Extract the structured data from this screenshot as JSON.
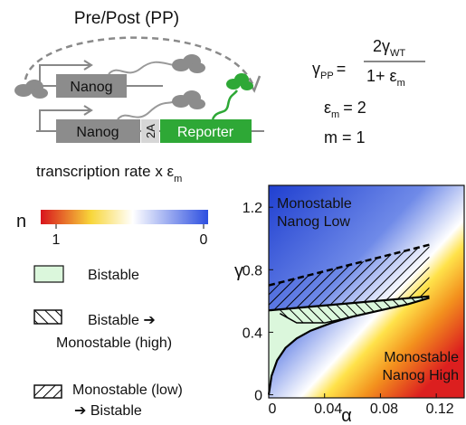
{
  "diagram": {
    "title": "Pre/Post (PP)",
    "gene1": "Nanog",
    "gene2": "Nanog",
    "linker": "2A",
    "reporter": "Reporter",
    "caption": "transcription rate x ε",
    "caption_sub": "m"
  },
  "equation": {
    "lhs": "γ",
    "lhs_sub": "PP",
    "equals": "=",
    "numerator": "2γ",
    "numerator_sub": "WT",
    "denominator": "1+ ε",
    "denominator_sub": "m",
    "param1": "ε",
    "param1_sub": "m",
    "param1_value": "= 2",
    "param2": "m = 1"
  },
  "legend": {
    "colorbar_title": "n",
    "colorbar_ticks": [
      1,
      0
    ],
    "bistable": "Bistable",
    "to_high": [
      "Bistable ➔",
      "Monostable (high)"
    ],
    "from_low": [
      "Monostable (low)",
      "➔ Bistable"
    ]
  },
  "chart_data": {
    "type": "phase",
    "xlabel": "α",
    "ylabel": "γ",
    "xlim": [
      0,
      0.14
    ],
    "ylim": [
      -0.02,
      1.34
    ],
    "xticks": [
      0,
      0.04,
      0.08,
      0.12
    ],
    "yticks": [
      0,
      0.4,
      0.8,
      1.2
    ],
    "annotations": [
      [
        "Monostable",
        "Nanog Low"
      ],
      [
        "Monostable",
        "Nanog High"
      ]
    ],
    "boundaries": {
      "lower": {
        "x": [
          0,
          0.002,
          0.006,
          0.012,
          0.02,
          0.03,
          0.045,
          0.06,
          0.08,
          0.1,
          0.115
        ],
        "y": [
          0,
          0.12,
          0.22,
          0.3,
          0.36,
          0.41,
          0.46,
          0.5,
          0.54,
          0.58,
          0.62
        ]
      },
      "mid": {
        "x": [
          0.008,
          0.02,
          0.04,
          0.06,
          0.08,
          0.1,
          0.115
        ],
        "y": [
          0.52,
          0.46,
          0.46,
          0.5,
          0.54,
          0.58,
          0.62
        ]
      },
      "upper_solid": {
        "x": [
          0,
          0.115
        ],
        "y": [
          0.54,
          0.63
        ]
      },
      "upper_dashed": {
        "x": [
          0,
          0.115
        ],
        "y": [
          0.7,
          0.96
        ]
      }
    }
  }
}
